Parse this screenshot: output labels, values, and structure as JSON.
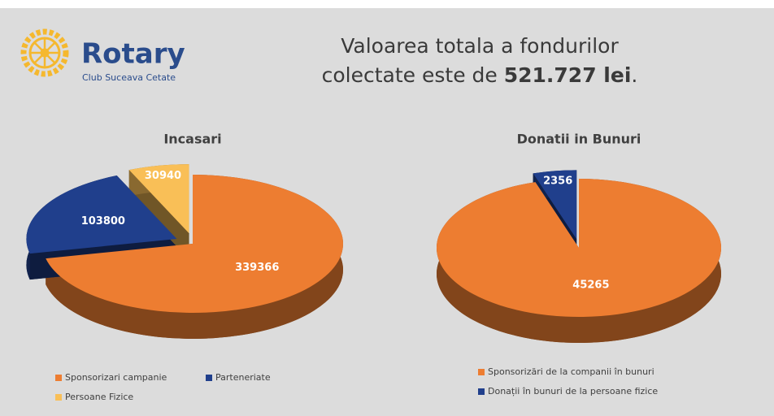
{
  "header": {
    "logo_name": "Rotary",
    "logo_subtitle": "Club Suceava Cetate",
    "headline_line1": "Valoarea totala a fondurilor",
    "headline_line2": "colectate este de ",
    "headline_amount": "521.727 lei",
    "headline_end": "."
  },
  "chart_data": [
    {
      "type": "pie",
      "title": "Incasari",
      "categories": [
        "Sponsorizari campanie",
        "Parteneriate",
        "Persoane Fizice"
      ],
      "values": [
        339366,
        103800,
        30940
      ],
      "colors": [
        "#ed7d31",
        "#203f8c",
        "#f9bf57"
      ],
      "legend": "bottom"
    },
    {
      "type": "pie",
      "title": "Donatii in Bunuri",
      "categories": [
        "Sponsorizări de la companii în bunuri",
        "Donații în bunuri de la persoane fizice"
      ],
      "values": [
        45265,
        2356
      ],
      "colors": [
        "#ed7d31",
        "#203f8c"
      ],
      "legend": "bottom"
    }
  ]
}
